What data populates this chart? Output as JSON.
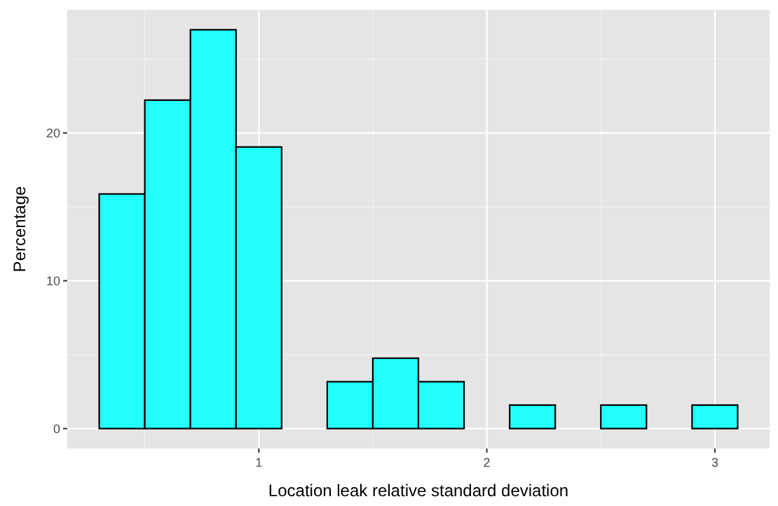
{
  "chart_data": {
    "type": "histogram",
    "xlabel": "Location leak relative standard deviation",
    "ylabel": "Percentage",
    "bins": [
      0.3,
      0.5,
      0.7,
      0.9,
      1.1,
      1.3,
      1.5,
      1.7,
      1.9,
      2.1,
      2.3,
      2.5,
      2.7,
      2.9,
      3.1
    ],
    "values": [
      15.87,
      22.22,
      26.98,
      19.05,
      0,
      3.17,
      4.76,
      3.17,
      0,
      1.59,
      0,
      1.59,
      0,
      1.59
    ],
    "color": "#22ffff",
    "xlim": [
      0.16,
      3.24
    ],
    "ylim": [
      -1.35,
      28.33
    ],
    "xticks": [
      1,
      2,
      3
    ],
    "yticks": [
      0,
      10,
      20
    ],
    "grid": true
  }
}
